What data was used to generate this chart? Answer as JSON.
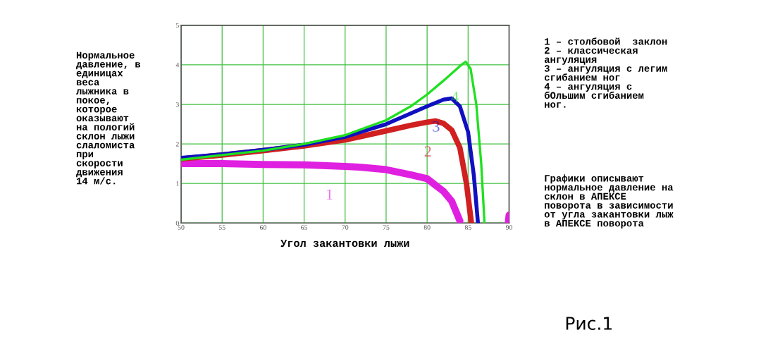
{
  "chart_data": {
    "type": "line",
    "xlabel": "Угол закантовки лыжи",
    "ylabel": "Нормальное\nдавление, в\nединицах\nвеса\nлыжника в\nпокое,\nкоторое\nоказывают\nна пологий\nсклон лыжи\nслаломиста\nпри\nскорости\nдвижения\n14 м/с.",
    "xlim": [
      50,
      90
    ],
    "ylim": [
      0,
      5
    ],
    "xticks": [
      50,
      55,
      60,
      65,
      70,
      75,
      80,
      85,
      90
    ],
    "yticks": [
      0,
      1,
      2,
      3,
      4,
      5
    ],
    "grid": true,
    "series": [
      {
        "name": "1",
        "color": "#e020e0",
        "x": [
          50,
          55,
          60,
          65,
          70,
          72,
          75,
          78,
          80,
          82,
          83,
          84,
          null,
          89.9,
          90
        ],
        "values": [
          1.5,
          1.5,
          1.48,
          1.47,
          1.43,
          1.41,
          1.35,
          1.22,
          1.12,
          0.8,
          0.55,
          0.05,
          null,
          0,
          0.2
        ]
      },
      {
        "name": "2",
        "color": "#d02020",
        "x": [
          50,
          55,
          60,
          65,
          70,
          75,
          78,
          80,
          81,
          82,
          83,
          84,
          84.8,
          85.4
        ],
        "values": [
          1.62,
          1.72,
          1.83,
          1.95,
          2.1,
          2.33,
          2.47,
          2.55,
          2.58,
          2.52,
          2.35,
          1.9,
          1.0,
          0
        ]
      },
      {
        "name": "3",
        "color": "#1010c0",
        "x": [
          50,
          55,
          60,
          65,
          70,
          75,
          80,
          82,
          83,
          84,
          85,
          85.7,
          86.2
        ],
        "values": [
          1.65,
          1.74,
          1.85,
          1.98,
          2.18,
          2.5,
          2.95,
          3.12,
          3.15,
          2.95,
          2.3,
          1.2,
          0
        ]
      },
      {
        "name": "4",
        "color": "#20e020",
        "x": [
          50,
          55,
          60,
          65,
          70,
          75,
          78,
          80,
          82,
          84,
          84.7,
          85.3,
          86,
          86.6,
          87
        ],
        "values": [
          1.6,
          1.72,
          1.83,
          2.0,
          2.22,
          2.6,
          2.95,
          3.25,
          3.6,
          3.97,
          4.08,
          3.9,
          3.0,
          1.5,
          0
        ]
      }
    ],
    "annotations": [
      "1 – столбовой  заклон\n2 – классическая\nангуляция\n3 – ангуляция с легим\nсгибанием ног\n4 – ангуляция с\nбОльшим сгибанием\nног.",
      "Графики описывают\nнормальное давление на\nсклон в АПЕКСЕ\nповорота в зависимости\nот угла закантовки лыж\nв АПЕКСЕ поворота",
      "Рис.1"
    ]
  }
}
